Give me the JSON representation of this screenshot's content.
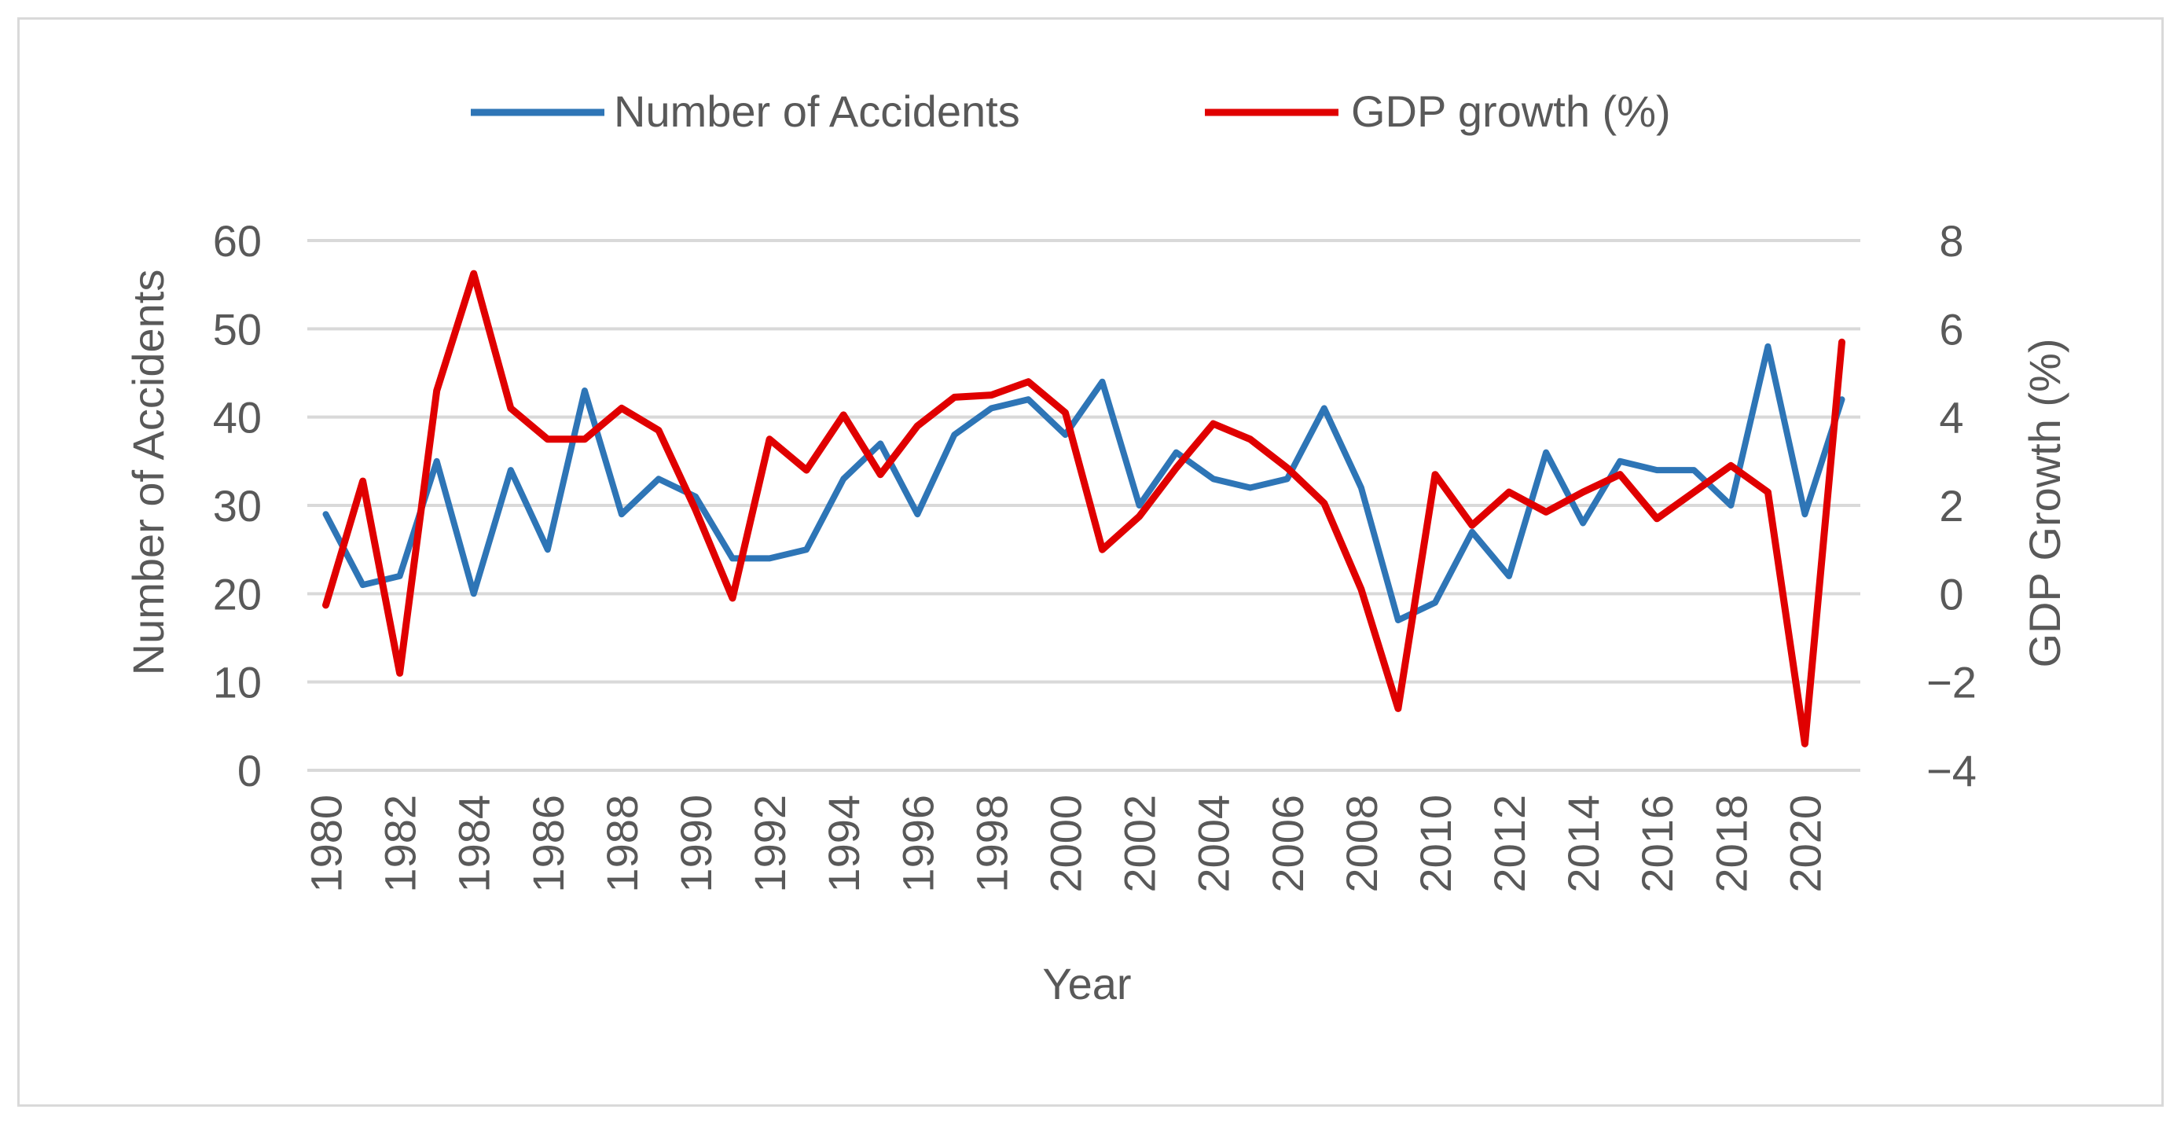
{
  "chart_data": {
    "type": "line",
    "title": "",
    "xlabel": "Year",
    "ylabel": "Number of Accidents",
    "y2label": "GDP Growth (%)",
    "x": [
      1980,
      1981,
      1982,
      1983,
      1984,
      1985,
      1986,
      1987,
      1988,
      1989,
      1990,
      1991,
      1992,
      1993,
      1994,
      1995,
      1996,
      1997,
      1998,
      1999,
      2000,
      2001,
      2002,
      2003,
      2004,
      2005,
      2006,
      2007,
      2008,
      2009,
      2010,
      2011,
      2012,
      2013,
      2014,
      2015,
      2016,
      2017,
      2018,
      2019,
      2020,
      2021
    ],
    "x_tick_labels": [
      "1980",
      "1982",
      "1984",
      "1986",
      "1988",
      "1990",
      "1992",
      "1994",
      "1996",
      "1998",
      "2000",
      "2002",
      "2004",
      "2006",
      "2008",
      "2010",
      "2012",
      "2014",
      "2016",
      "2018",
      "2020"
    ],
    "ylim": [
      0,
      60
    ],
    "y_ticks": [
      0,
      10,
      20,
      30,
      40,
      50,
      60
    ],
    "y_tick_labels": [
      "0",
      "10",
      "20",
      "30",
      "40",
      "50",
      "60"
    ],
    "y2lim": [
      -4,
      8
    ],
    "y2_ticks": [
      -4,
      -2,
      0,
      2,
      4,
      6,
      8
    ],
    "y2_tick_labels": [
      "−4",
      "−2",
      "0",
      "2",
      "4",
      "6",
      "8"
    ],
    "grid": true,
    "legend_position": "top-center",
    "series": [
      {
        "name": "Number of Accidents",
        "axis": "left",
        "color": "#2e75b6",
        "values": [
          29,
          21,
          22,
          35,
          20,
          34,
          25,
          43,
          29,
          33,
          31,
          24,
          24,
          25,
          33,
          37,
          29,
          38,
          41,
          42,
          38,
          44,
          30,
          36,
          33,
          32,
          33,
          41,
          32,
          17,
          19,
          27,
          22,
          36,
          28,
          35,
          34,
          34,
          30,
          48,
          29,
          42
        ]
      },
      {
        "name": "GDP growth (%)",
        "axis": "right",
        "color": "#e00000",
        "values": [
          -0.26,
          2.55,
          -1.8,
          4.6,
          7.25,
          4.2,
          3.5,
          3.5,
          4.2,
          3.7,
          1.9,
          -0.1,
          3.5,
          2.8,
          4.05,
          2.7,
          3.8,
          4.45,
          4.5,
          4.8,
          4.1,
          1.0,
          1.75,
          2.85,
          3.85,
          3.5,
          2.85,
          2.05,
          0.1,
          -2.6,
          2.7,
          1.55,
          2.3,
          1.85,
          2.3,
          2.7,
          1.7,
          2.3,
          2.9,
          2.3,
          -3.4,
          5.7
        ]
      }
    ]
  }
}
